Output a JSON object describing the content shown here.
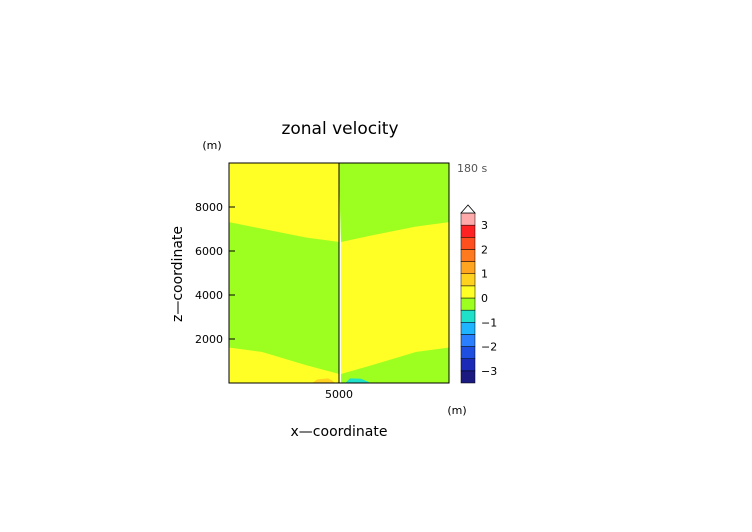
{
  "chart_data": {
    "type": "heatmap",
    "title": "zonal velocity",
    "time_label": "180 s",
    "xlabel": "x—coordinate",
    "ylabel": "z—coordinate",
    "x_unit": "(m)",
    "y_unit": "(m)",
    "xlim": [
      0,
      10000
    ],
    "ylim": [
      0,
      10000
    ],
    "x_ticks": [
      5000
    ],
    "y_ticks": [
      2000,
      4000,
      6000,
      8000
    ],
    "colorbar": {
      "min": -3.5,
      "max": 3.5,
      "levels": [
        {
          "from": -3.5,
          "to": -3.0,
          "color": "#1a1a80"
        },
        {
          "from": -3.0,
          "to": -2.5,
          "color": "#1c2ab8"
        },
        {
          "from": -2.5,
          "to": -2.0,
          "color": "#1f4fe0"
        },
        {
          "from": -2.0,
          "to": -1.5,
          "color": "#2a7fff"
        },
        {
          "from": -1.5,
          "to": -1.0,
          "color": "#1fb4ff"
        },
        {
          "from": -1.0,
          "to": -0.5,
          "color": "#1fe0c8"
        },
        {
          "from": -0.5,
          "to": 0.0,
          "color": "#9dff1f"
        },
        {
          "from": 0.0,
          "to": 0.5,
          "color": "#ffff26"
        },
        {
          "from": 0.5,
          "to": 1.0,
          "color": "#ffd21f"
        },
        {
          "from": 1.0,
          "to": 1.5,
          "color": "#ffa51f"
        },
        {
          "from": 1.5,
          "to": 2.0,
          "color": "#ff7a1f"
        },
        {
          "from": 2.0,
          "to": 2.5,
          "color": "#ff4f1f"
        },
        {
          "from": 2.5,
          "to": 3.0,
          "color": "#ff2222"
        },
        {
          "from": 3.0,
          "to": 3.5,
          "color": "#ffaaaa"
        }
      ],
      "tick_labels": [
        -3,
        -2,
        -1,
        0,
        1,
        2,
        3
      ]
    },
    "regions": [
      {
        "value": 0.25,
        "desc": "upper-left",
        "polygon": [
          [
            0,
            10000
          ],
          [
            5000,
            10000
          ],
          [
            5000,
            6400
          ],
          [
            3500,
            6600
          ],
          [
            1500,
            7000
          ],
          [
            0,
            7300
          ]
        ]
      },
      {
        "value": -0.25,
        "desc": "upper-right",
        "polygon": [
          [
            5000,
            10000
          ],
          [
            10000,
            10000
          ],
          [
            10000,
            7300
          ],
          [
            8500,
            7100
          ],
          [
            6500,
            6700
          ],
          [
            5100,
            6400
          ]
        ]
      },
      {
        "value": -0.25,
        "desc": "middle-left",
        "polygon": [
          [
            0,
            7300
          ],
          [
            1500,
            7000
          ],
          [
            3500,
            6600
          ],
          [
            5000,
            6400
          ],
          [
            5000,
            400
          ],
          [
            3500,
            800
          ],
          [
            1500,
            1400
          ],
          [
            0,
            1600
          ]
        ]
      },
      {
        "value": 0.25,
        "desc": "middle-right",
        "polygon": [
          [
            5100,
            6400
          ],
          [
            6500,
            6700
          ],
          [
            8500,
            7100
          ],
          [
            10000,
            7300
          ],
          [
            10000,
            1600
          ],
          [
            8500,
            1400
          ],
          [
            6500,
            800
          ],
          [
            5100,
            400
          ]
        ]
      },
      {
        "value": 0.25,
        "desc": "lower-left",
        "polygon": [
          [
            0,
            1600
          ],
          [
            1500,
            1400
          ],
          [
            3500,
            800
          ],
          [
            5000,
            400
          ],
          [
            5000,
            0
          ],
          [
            0,
            0
          ]
        ]
      },
      {
        "value": -0.25,
        "desc": "lower-right",
        "polygon": [
          [
            5100,
            400
          ],
          [
            6500,
            800
          ],
          [
            8500,
            1400
          ],
          [
            10000,
            1600
          ],
          [
            10000,
            0
          ],
          [
            5100,
            0
          ]
        ]
      },
      {
        "value": 0.75,
        "desc": "small positive blob",
        "polygon": [
          [
            3800,
            0
          ],
          [
            4000,
            150
          ],
          [
            4500,
            200
          ],
          [
            4700,
            100
          ],
          [
            4800,
            0
          ]
        ]
      },
      {
        "value": -0.75,
        "desc": "small negative blob",
        "polygon": [
          [
            5300,
            0
          ],
          [
            5500,
            200
          ],
          [
            6000,
            180
          ],
          [
            6300,
            60
          ],
          [
            6400,
            0
          ]
        ]
      }
    ],
    "grid": false
  }
}
